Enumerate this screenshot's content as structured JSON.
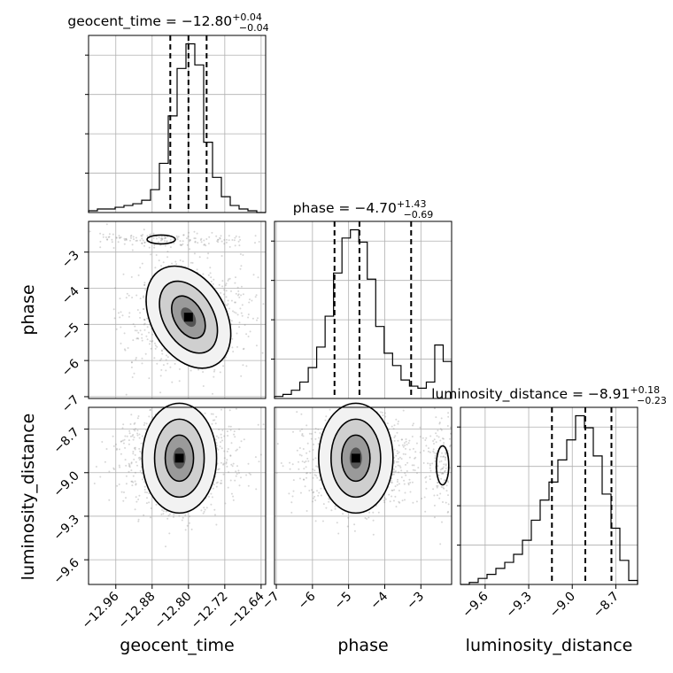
{
  "chart_data": {
    "type": "corner",
    "parameters": [
      "geocent_time",
      "phase",
      "luminosity_distance"
    ],
    "titles": [
      {
        "param": "geocent_time",
        "prefix": "geocent_time = ",
        "median": "−12.80",
        "plus": "+0.04",
        "minus": "−0.04"
      },
      {
        "param": "phase",
        "prefix": "phase = ",
        "median": "−4.70",
        "plus": "+1.43",
        "minus": "−0.69"
      },
      {
        "param": "luminosity_distance",
        "prefix": "luminosity_distance = ",
        "median": "−8.91",
        "plus": "+0.18",
        "minus": "−0.23"
      }
    ],
    "ranges": {
      "geocent_time": [
        -13.02,
        -12.63
      ],
      "phase": [
        -7.05,
        -2.15
      ],
      "luminosity_distance": [
        -9.77,
        -8.55
      ]
    },
    "ticks": {
      "geocent_time": {
        "values": [
          -12.96,
          -12.88,
          -12.8,
          -12.72,
          -12.64
        ],
        "labels": [
          "−12.96",
          "−12.88",
          "−12.80",
          "−12.72",
          "−12.64"
        ]
      },
      "phase": {
        "values": [
          -7,
          -6,
          -5,
          -4,
          -3
        ],
        "labels": [
          "−7",
          "−6",
          "−5",
          "−4",
          "−3"
        ]
      },
      "luminosity_distance": {
        "values": [
          -9.6,
          -9.3,
          -9.0,
          -8.7
        ],
        "labels": [
          "−9.6",
          "−9.3",
          "−9.0",
          "−8.7"
        ]
      }
    },
    "quantiles": {
      "geocent_time": [
        -12.84,
        -12.8,
        -12.76
      ],
      "phase": [
        -5.39,
        -4.7,
        -3.27
      ],
      "luminosity_distance": [
        -9.14,
        -8.91,
        -8.73
      ]
    },
    "histograms": {
      "geocent_time": {
        "edges_range": [
          -13.02,
          -12.63
        ],
        "counts": [
          1,
          2,
          2,
          3,
          4,
          5,
          7,
          13,
          28,
          55,
          82,
          96,
          84,
          40,
          20,
          9,
          4,
          2,
          1,
          0
        ]
      },
      "phase": {
        "edges_range": [
          -7.05,
          -2.15
        ],
        "counts": [
          1,
          2,
          4,
          8,
          15,
          25,
          40,
          61,
          78,
          82,
          76,
          58,
          35,
          22,
          16,
          9,
          6,
          5,
          8,
          26,
          18
        ]
      },
      "luminosity_distance": {
        "edges_range": [
          -9.77,
          -8.55
        ],
        "counts": [
          0,
          1,
          3,
          5,
          8,
          11,
          15,
          22,
          32,
          42,
          51,
          62,
          72,
          84,
          78,
          64,
          45,
          28,
          12,
          2
        ]
      }
    },
    "scatter_centers": {
      "geocent_time_vs_phase": {
        "center": [
          -12.8,
          -4.8
        ],
        "extra": [
          -12.86,
          -2.65
        ]
      },
      "geocent_time_vs_luminosity_distance": {
        "center": [
          -12.82,
          -8.9
        ]
      },
      "phase_vs_luminosity_distance": {
        "center": [
          -4.8,
          -8.9
        ],
        "extra": [
          -2.4,
          -8.95
        ]
      }
    },
    "grid": true
  }
}
